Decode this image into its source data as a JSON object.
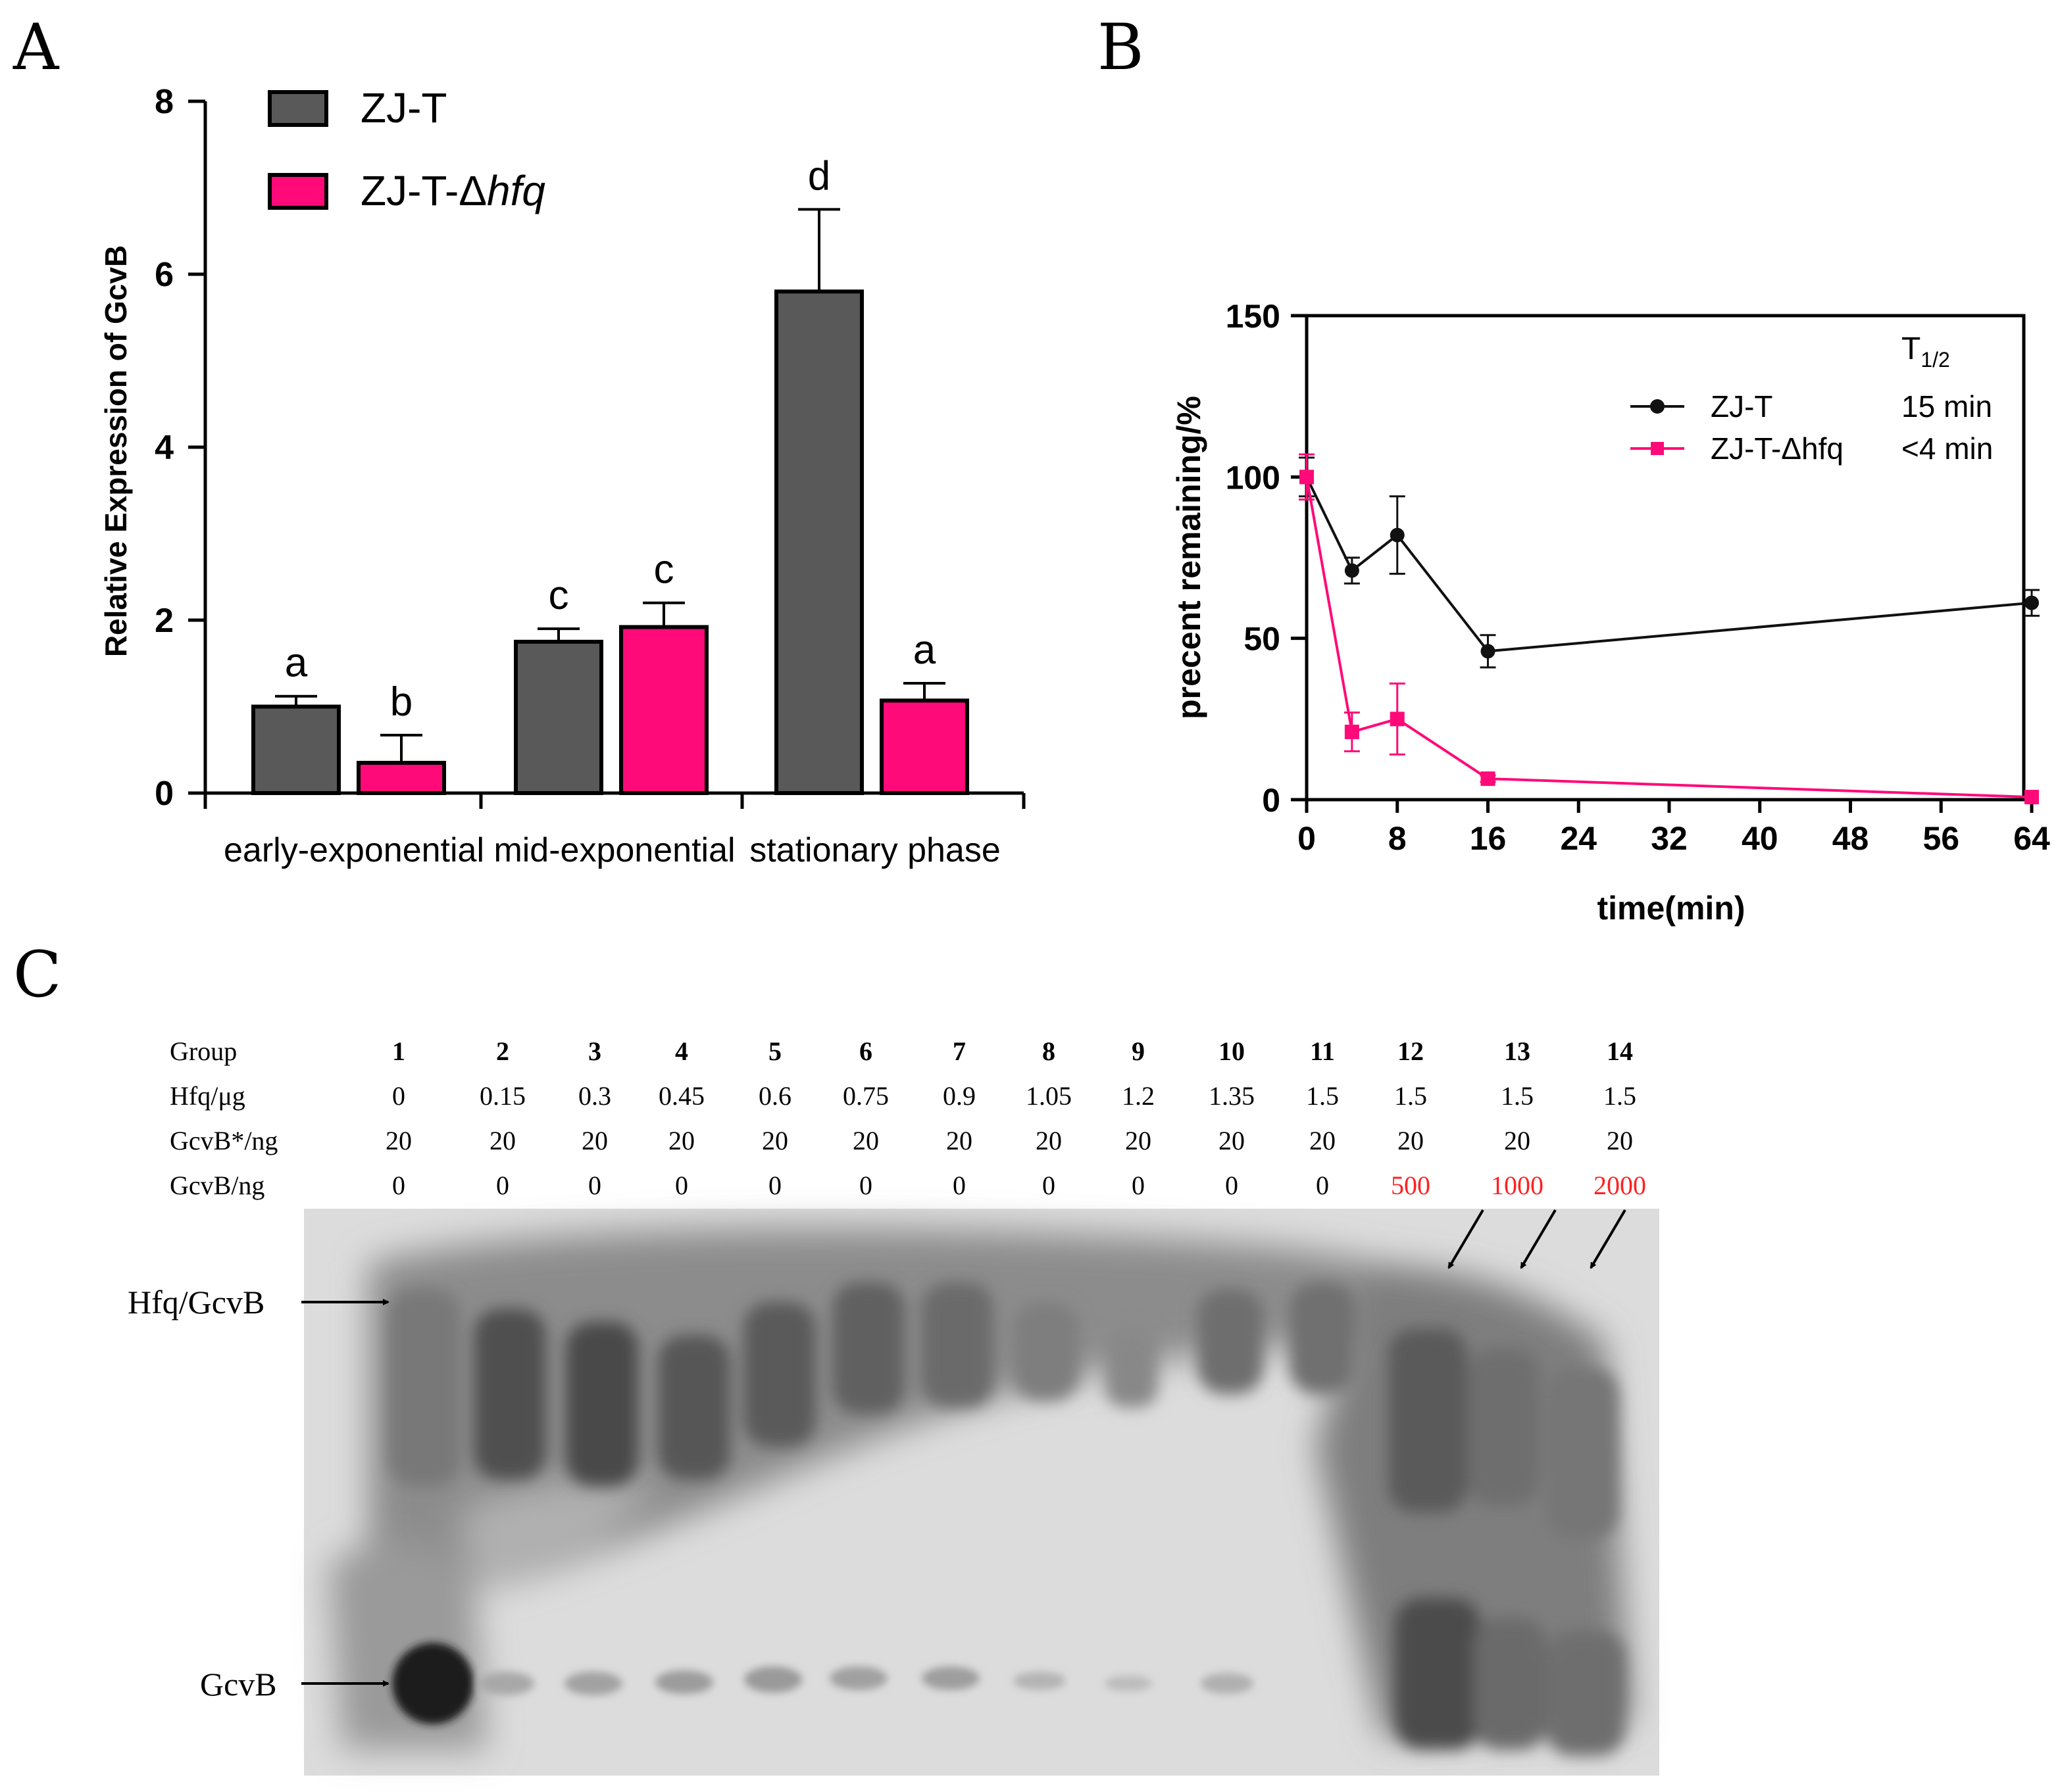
{
  "panels": {
    "a": "A",
    "b": "B",
    "c": "C"
  },
  "colors": {
    "zjt_bar": "#595959",
    "mutant": "#ff0a78",
    "line_black": "#111111",
    "red_text": "#ff2020"
  },
  "chart_data": [
    {
      "id": "A",
      "type": "bar",
      "title": "",
      "ylabel": "Relative Expression of GcvB",
      "xlabel": "",
      "ylim": [
        0,
        8
      ],
      "yticks": [
        "0",
        "2",
        "4",
        "6",
        "8"
      ],
      "categories": [
        "early-exponential",
        "mid-exponential",
        "stationary phase"
      ],
      "legend": {
        "placement": "top-left",
        "entries": [
          {
            "prefix": "ZJ-T",
            "italic": ""
          },
          {
            "prefix": "ZJ-T-Δ",
            "italic": "hfq"
          }
        ]
      },
      "series": [
        {
          "name": "ZJ-T",
          "color_key": "zjt_bar",
          "values": [
            1.0,
            1.75,
            5.8
          ],
          "errors": [
            0.12,
            0.15,
            0.95
          ],
          "letters": [
            "a",
            "c",
            "d"
          ]
        },
        {
          "name": "ZJ-T-Δhfq",
          "color_key": "mutant",
          "values": [
            0.35,
            1.92,
            1.07
          ],
          "errors": [
            0.32,
            0.28,
            0.2
          ],
          "letters": [
            "b",
            "c",
            "a"
          ]
        }
      ]
    },
    {
      "id": "B",
      "type": "line",
      "xlabel": "time(min)",
      "ylabel": "precent remaining/%",
      "ylim": [
        0,
        150
      ],
      "yticks": [
        "0",
        "50",
        "100",
        "150"
      ],
      "xticks": [
        "0",
        "8",
        "16",
        "24",
        "32",
        "40",
        "48",
        "56",
        "64"
      ],
      "xlim": [
        0,
        64
      ],
      "half_life_header_main": "T",
      "half_life_header_sub": "1/2",
      "series": [
        {
          "name": "ZJ-T",
          "half_life": "15 min",
          "marker": "circle",
          "color_key": "line_black",
          "x": [
            0,
            4,
            8,
            16,
            64
          ],
          "y": [
            100,
            71,
            82,
            46,
            61
          ],
          "err": [
            6,
            4,
            12,
            5,
            4
          ]
        },
        {
          "name": "ZJ-T-Δhfq",
          "half_life": "<4 min",
          "marker": "square",
          "color_key": "mutant",
          "x": [
            0,
            4,
            8,
            16,
            64
          ],
          "y": [
            100,
            21,
            25,
            6.5,
            0.8
          ],
          "err": [
            7,
            6,
            11,
            1,
            0
          ]
        }
      ]
    }
  ],
  "gel_table": {
    "row_labels": [
      "Group",
      "Hfq/μg",
      "GcvB*/ng",
      "GcvB/ng"
    ],
    "groups": [
      "1",
      "2",
      "3",
      "4",
      "5",
      "6",
      "7",
      "8",
      "9",
      "10",
      "11",
      "12",
      "13",
      "14"
    ],
    "hfq": [
      "0",
      "0.15",
      "0.3",
      "0.45",
      "0.6",
      "0.75",
      "0.9",
      "1.05",
      "1.2",
      "1.35",
      "1.5",
      "1.5",
      "1.5",
      "1.5"
    ],
    "gcvb_star": [
      "20",
      "20",
      "20",
      "20",
      "20",
      "20",
      "20",
      "20",
      "20",
      "20",
      "20",
      "20",
      "20",
      "20"
    ],
    "gcvb": [
      "0",
      "0",
      "0",
      "0",
      "0",
      "0",
      "0",
      "0",
      "0",
      "0",
      "0",
      "500",
      "1000",
      "2000"
    ],
    "gcvb_red_from_index": 11
  },
  "gel_labels": {
    "complex": "Hfq/GcvB",
    "free": "GcvB"
  }
}
